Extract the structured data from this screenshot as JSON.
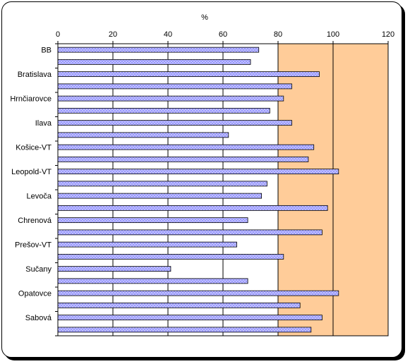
{
  "chart_data": {
    "type": "bar",
    "orientation": "horizontal",
    "xlabel": "%",
    "xlim": [
      0,
      120
    ],
    "xticks": [
      0,
      20,
      40,
      60,
      80,
      100,
      120
    ],
    "grid": true,
    "categories": [
      "BB",
      "Bratislava",
      "Hrnčiarovce",
      "Ilava",
      "Košice-VT",
      "Leopold-VT",
      "Levoča",
      "Chrenová",
      "Prešov-VT",
      "Sučany",
      "Opatovce",
      "Sabová"
    ],
    "series": [
      {
        "values": [
          73,
          95,
          82,
          85,
          93,
          102,
          74,
          69,
          65,
          41,
          102,
          96
        ]
      },
      {
        "values": [
          70,
          85,
          77,
          62,
          91,
          76,
          98,
          96,
          82,
          69,
          88,
          92
        ]
      }
    ],
    "colors": {
      "plot_background": "#ffffff",
      "highlight_background": "#ffcc99",
      "bar_fill": "#9999ff",
      "bar_dots": "#ffffff",
      "gridline": "#000000"
    },
    "highlight_region": [
      80,
      120
    ]
  }
}
